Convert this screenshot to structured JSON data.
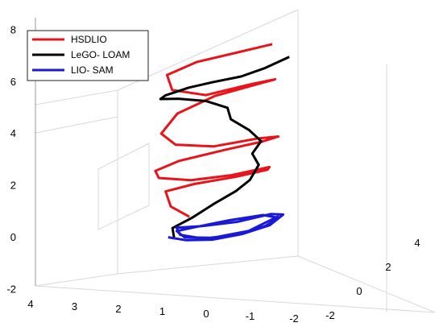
{
  "chart_data": {
    "type": "line",
    "subtype": "3d-trajectory",
    "title": "",
    "xlabel": "",
    "ylabel": "",
    "zlabel": "",
    "axes": {
      "z_ticks": [
        "-2",
        "0",
        "2",
        "4",
        "6",
        "8"
      ],
      "x_ticks": [
        "4",
        "3",
        "2",
        "1",
        "0",
        "-1",
        "-2"
      ],
      "y_ticks": [
        "-2",
        "0",
        "2",
        "4"
      ],
      "zlim": [
        -2,
        8
      ],
      "xlim": [
        -2,
        4
      ],
      "ylim": [
        -2,
        5
      ],
      "grid": true
    },
    "legend": {
      "placement": "top-left",
      "entries": [
        {
          "name": "HSDLIO",
          "color": "#e8141b"
        },
        {
          "name": "LeGO- LOAM",
          "color": "#000000"
        },
        {
          "name": "LIO- SAM",
          "color": "#1a1ad6"
        }
      ]
    },
    "series": [
      {
        "name": "HSDLIO",
        "color": "#e8141b",
        "description": "helical spiral ascending from z=1 to z=7",
        "points": [
          [
            0.8,
            0.2,
            1.0
          ],
          [
            1.6,
            0.6,
            1.4
          ],
          [
            2.1,
            1.3,
            1.9
          ],
          [
            1.5,
            2.0,
            2.0
          ],
          [
            0.3,
            2.4,
            2.1
          ],
          [
            -0.8,
            2.2,
            2.3
          ],
          [
            -1.2,
            1.5,
            2.5
          ],
          [
            -0.3,
            0.8,
            2.4
          ],
          [
            0.8,
            0.3,
            2.4
          ],
          [
            1.8,
            0.2,
            2.6
          ],
          [
            2.2,
            0.8,
            2.8
          ],
          [
            1.8,
            1.6,
            3.0
          ],
          [
            0.6,
            2.2,
            3.2
          ],
          [
            -0.6,
            2.3,
            3.4
          ],
          [
            -1.3,
            1.9,
            3.6
          ],
          [
            -1.0,
            1.1,
            3.7
          ],
          [
            0.2,
            0.6,
            3.6
          ],
          [
            1.4,
            0.5,
            3.8
          ],
          [
            2.1,
            1.0,
            4.2
          ],
          [
            2.0,
            1.9,
            4.8
          ],
          [
            1.0,
            2.4,
            5.3
          ],
          [
            -0.3,
            2.6,
            5.6
          ],
          [
            -1.1,
            2.1,
            5.8
          ],
          [
            -0.7,
            1.3,
            5.8
          ],
          [
            0.5,
            0.7,
            5.6
          ],
          [
            1.6,
            0.7,
            5.9
          ],
          [
            2.1,
            1.4,
            6.4
          ],
          [
            1.5,
            2.2,
            6.7
          ],
          [
            0.3,
            2.6,
            6.9
          ],
          [
            -0.7,
            2.4,
            7.1
          ],
          [
            -1.1,
            1.9,
            7.2
          ]
        ]
      },
      {
        "name": "LeGO- LOAM",
        "color": "#000000",
        "description": "irregular ascending trajectory",
        "points": [
          [
            1.2,
            0.0,
            0.2
          ],
          [
            1.4,
            0.3,
            0.6
          ],
          [
            0.9,
            0.6,
            0.9
          ],
          [
            0.4,
            1.0,
            1.3
          ],
          [
            -0.2,
            1.3,
            1.7
          ],
          [
            -0.7,
            1.2,
            2.1
          ],
          [
            -0.8,
            1.6,
            2.6
          ],
          [
            -0.4,
            2.0,
            3.0
          ],
          [
            -0.5,
            2.4,
            3.4
          ],
          [
            -0.2,
            2.2,
            3.9
          ],
          [
            0.3,
            2.0,
            4.4
          ],
          [
            0.6,
            2.4,
            4.8
          ],
          [
            1.4,
            2.6,
            5.1
          ],
          [
            2.2,
            2.4,
            5.3
          ],
          [
            2.6,
            2.0,
            5.4
          ],
          [
            2.2,
            1.5,
            5.6
          ],
          [
            1.2,
            1.0,
            5.9
          ],
          [
            0.2,
            0.6,
            6.1
          ],
          [
            -0.6,
            0.8,
            6.2
          ],
          [
            -1.2,
            1.2,
            6.4
          ],
          [
            -1.8,
            1.6,
            6.7
          ]
        ]
      },
      {
        "name": "LIO- SAM",
        "color": "#1a1ad6",
        "description": "flat loops near z=0",
        "points": [
          [
            1.4,
            0.0,
            0.3
          ],
          [
            0.9,
            0.2,
            0.1
          ],
          [
            0.2,
            0.5,
            0.0
          ],
          [
            -0.7,
            0.7,
            0.1
          ],
          [
            -1.4,
            1.1,
            0.3
          ],
          [
            -1.6,
            1.6,
            0.6
          ],
          [
            -1.0,
            2.0,
            0.6
          ],
          [
            0.1,
            2.0,
            0.4
          ],
          [
            1.1,
            1.6,
            0.4
          ],
          [
            1.6,
            1.0,
            0.5
          ],
          [
            1.2,
            0.4,
            0.3
          ],
          [
            0.4,
            0.3,
            0.1
          ],
          [
            -0.6,
            0.6,
            0.1
          ],
          [
            -1.3,
            1.0,
            0.3
          ],
          [
            -1.5,
            1.5,
            0.5
          ],
          [
            -0.8,
            1.9,
            0.6
          ],
          [
            0.3,
            1.9,
            0.5
          ],
          [
            1.2,
            1.5,
            0.4
          ],
          [
            1.5,
            0.8,
            0.4
          ],
          [
            1.0,
            0.3,
            0.2
          ],
          [
            0.1,
            0.3,
            0.1
          ],
          [
            -0.9,
            0.7,
            0.2
          ],
          [
            -1.6,
            1.3,
            0.6
          ]
        ]
      }
    ]
  }
}
